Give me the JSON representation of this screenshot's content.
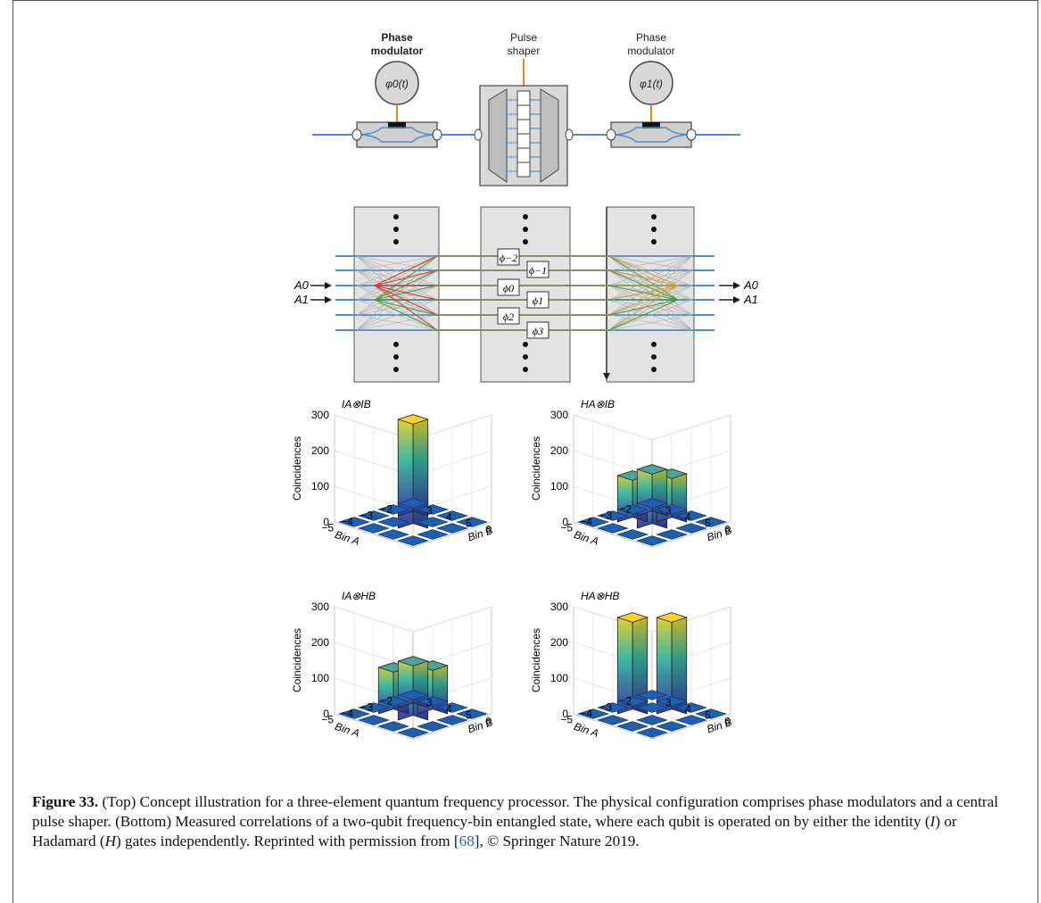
{
  "figure": {
    "top": {
      "pm0_label": [
        "Phase",
        "modulator"
      ],
      "shaper_label": [
        "Pulse",
        "shaper"
      ],
      "pm1_label": [
        "Phase",
        "modulator"
      ],
      "pm0_phase": "φ0(t)",
      "pm1_phase": "φ1(t)"
    },
    "middle": {
      "input_labels": [
        "A0",
        "A1"
      ],
      "output_labels": [
        "A0",
        "A1"
      ],
      "phases": [
        "ϕ−2",
        "ϕ−1",
        "ϕ0",
        "ϕ1",
        "ϕ2",
        "ϕ3"
      ]
    },
    "colors": {
      "fiber": "#4a8fd0",
      "accent": "#e08b2a",
      "panel": "#e3e3e3",
      "bar_top": "#f1cf2a",
      "bar_bottom": "#3b3fa8",
      "floor_tile": "#1f5fae"
    }
  },
  "chart_data": [
    {
      "type": "bar3d",
      "title": "IA⊗IB",
      "zlabel": "Coincidences",
      "xlabel": "Bin A",
      "ylabel": "Bin B",
      "zticks": [
        "0",
        "100",
        "200",
        "300"
      ],
      "xticks": [
        "−5",
        "−4",
        "−3",
        "−2"
      ],
      "yticks": [
        "3",
        "4",
        "5",
        "6"
      ],
      "zlim": [
        0,
        300
      ],
      "bars": [
        {
          "binA": -4,
          "binB": 5,
          "value": 280
        },
        {
          "binA": -3,
          "binB": 4,
          "value": 270
        }
      ]
    },
    {
      "type": "bar3d",
      "title": "HA⊗IB",
      "zlabel": "Coincidences",
      "xlabel": "Bin A",
      "ylabel": "Bin B",
      "zticks": [
        "0",
        "100",
        "200",
        "300"
      ],
      "xticks": [
        "−5",
        "−4",
        "−3",
        "−2"
      ],
      "yticks": [
        "3",
        "4",
        "5",
        "6"
      ],
      "zlim": [
        0,
        300
      ],
      "bars": [
        {
          "binA": -4,
          "binB": 5,
          "value": 135
        },
        {
          "binA": -4,
          "binB": 4,
          "value": 130
        },
        {
          "binA": -3,
          "binB": 5,
          "value": 135
        },
        {
          "binA": -3,
          "binB": 4,
          "value": 130
        }
      ]
    },
    {
      "type": "bar3d",
      "title": "IA⊗HB",
      "zlabel": "Coincidences",
      "xlabel": "Bin A",
      "ylabel": "Bin B",
      "zticks": [
        "0",
        "100",
        "200",
        "300"
      ],
      "xticks": [
        "−5",
        "−4",
        "−3",
        "−2"
      ],
      "yticks": [
        "3",
        "4",
        "5",
        "6"
      ],
      "zlim": [
        0,
        300
      ],
      "bars": [
        {
          "binA": -4,
          "binB": 5,
          "value": 135
        },
        {
          "binA": -4,
          "binB": 4,
          "value": 130
        },
        {
          "binA": -3,
          "binB": 5,
          "value": 135
        },
        {
          "binA": -3,
          "binB": 4,
          "value": 130
        }
      ]
    },
    {
      "type": "bar3d",
      "title": "HA⊗HB",
      "zlabel": "Coincidences",
      "xlabel": "Bin A",
      "ylabel": "Bin B",
      "zticks": [
        "0",
        "100",
        "200",
        "300"
      ],
      "xticks": [
        "−5",
        "−4",
        "−3",
        "−2"
      ],
      "yticks": [
        "3",
        "4",
        "5",
        "6"
      ],
      "zlim": [
        0,
        300
      ],
      "bars": [
        {
          "binA": -4,
          "binB": 4,
          "value": 270
        },
        {
          "binA": -3,
          "binB": 5,
          "value": 270
        }
      ]
    }
  ],
  "caption": {
    "label": "Figure 33.",
    "text1": " (Top) Concept illustration for a three-element quantum frequency processor. The physical configuration comprises phase modulators and a central pulse shaper. (Bottom) Measured correlations of a two-qubit frequency-bin entangled state, where each qubit is operated on by either the identity (",
    "i": "I",
    "text2": ") or Hadamard (",
    "h": "H",
    "text3": ") gates independently. Reprinted with permission from [",
    "ref": "68",
    "text4": "], © Springer Nature 2019."
  }
}
